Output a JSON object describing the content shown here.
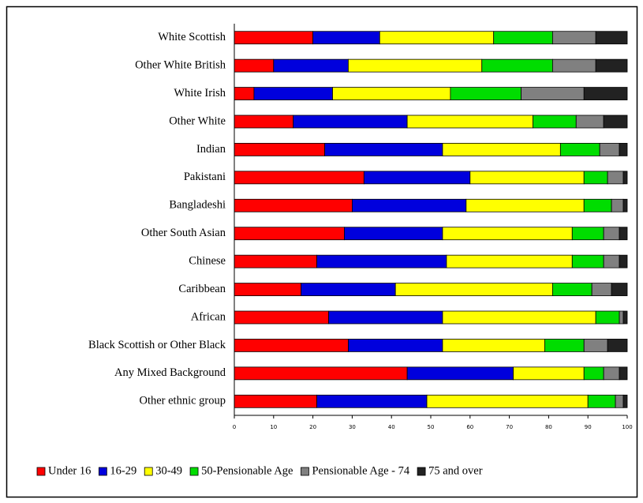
{
  "chart_data": {
    "type": "stacked-bar-horizontal",
    "categories": [
      "White Scottish",
      "Other White British",
      "White Irish",
      "Other White",
      "Indian",
      "Pakistani",
      "Bangladeshi",
      "Other South Asian",
      "Chinese",
      "Caribbean",
      "African",
      "Black Scottish or Other Black",
      "Any Mixed Background",
      "Other ethnic group"
    ],
    "series": [
      {
        "name": "Under 16",
        "color": "#ff0000",
        "values": [
          20,
          10,
          5,
          15,
          23,
          33,
          30,
          28,
          21,
          17,
          24,
          29,
          44,
          21
        ]
      },
      {
        "name": "16-29",
        "color": "#0000dd",
        "values": [
          17,
          19,
          20,
          29,
          30,
          27,
          29,
          25,
          33,
          24,
          29,
          24,
          27,
          28
        ]
      },
      {
        "name": "30-49",
        "color": "#ffff00",
        "values": [
          29,
          34,
          30,
          32,
          30,
          29,
          30,
          33,
          32,
          40,
          39,
          26,
          18,
          41
        ]
      },
      {
        "name": "50-Pensionable Age",
        "color": "#00dd00",
        "values": [
          15,
          18,
          18,
          11,
          10,
          6,
          7,
          8,
          8,
          10,
          6,
          10,
          5,
          7
        ]
      },
      {
        "name": "Pensionable Age - 74",
        "color": "#808080",
        "values": [
          11,
          11,
          16,
          7,
          5,
          4,
          3,
          4,
          4,
          5,
          1,
          6,
          4,
          2
        ]
      },
      {
        "name": "75 and over",
        "color": "#222222",
        "values": [
          8,
          8,
          11,
          6,
          2,
          1,
          1,
          2,
          2,
          4,
          1,
          5,
          2,
          1
        ]
      }
    ],
    "xlim": [
      0,
      100
    ],
    "xticks": [
      0,
      10,
      20,
      30,
      40,
      50,
      60,
      70,
      80,
      90,
      100
    ],
    "legend": "bottom"
  }
}
